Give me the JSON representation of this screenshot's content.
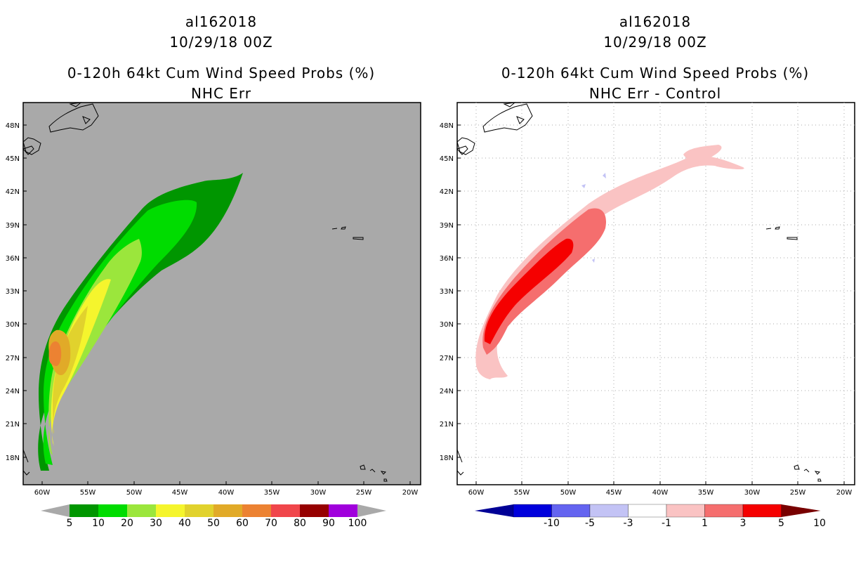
{
  "left_panel": {
    "storm_id": "al162018",
    "datetime": "10/29/18 00Z",
    "product": "0-120h 64kt Cum Wind Speed Probs (%)",
    "subtitle": "NHC Err",
    "background_color": "#a9a9a9",
    "colorbar": {
      "labels": [
        "5",
        "10",
        "20",
        "30",
        "40",
        "50",
        "60",
        "70",
        "80",
        "90",
        "100"
      ],
      "colors": [
        "#009600",
        "#00dc00",
        "#9be63c",
        "#f5f52d",
        "#e1d22d",
        "#e1aa28",
        "#ec8232",
        "#f0464b",
        "#960000",
        "#a000dc"
      ],
      "end_color": "#a9a9a9"
    }
  },
  "right_panel": {
    "storm_id": "al162018",
    "datetime": "10/29/18 00Z",
    "product": "0-120h 64kt Cum Wind Speed Probs (%)",
    "subtitle": "NHC Err - Control",
    "background_color": "#ffffff",
    "colorbar": {
      "labels": [
        "-10",
        "-5",
        "-3",
        "-1",
        "1",
        "3",
        "5",
        "10"
      ],
      "colors": [
        "#0000dc",
        "#6464f0",
        "#c3c3f5",
        "#ffffff",
        "#fac3c3",
        "#f56e6e",
        "#f50000"
      ],
      "low_end_color": "#000096",
      "high_end_color": "#780000"
    }
  },
  "axes": {
    "lat_labels": [
      "48N",
      "45N",
      "42N",
      "39N",
      "36N",
      "33N",
      "30N",
      "27N",
      "24N",
      "21N",
      "18N"
    ],
    "lon_labels": [
      "60W",
      "55W",
      "50W",
      "45W",
      "40W",
      "35W",
      "30W",
      "25W",
      "20W"
    ]
  }
}
